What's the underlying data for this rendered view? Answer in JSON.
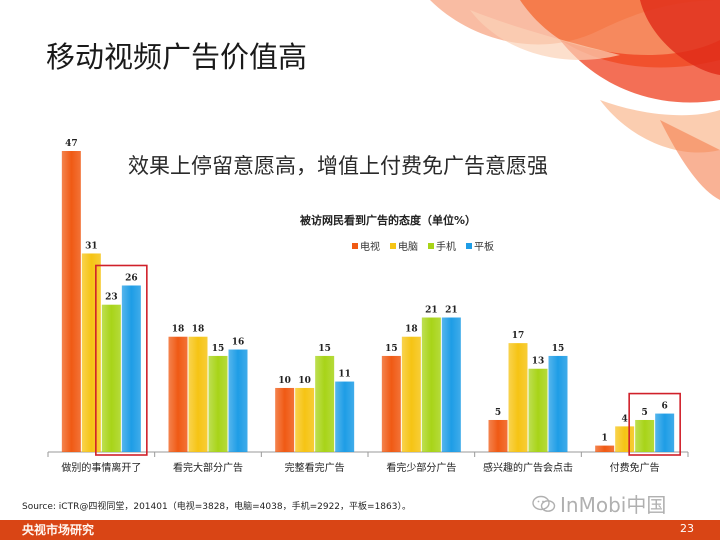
{
  "slide": {
    "title": "移动视频广告价值高",
    "subtitle": "效果上停留意愿高，增值上付费免广告意愿强",
    "source": "Source: iCTR@四视同堂，201401（电视=3828，电脑=4038，手机=2922，平板=1863）。",
    "watermark": "InMobi中国",
    "page_number": "23",
    "footer_brand": "央视市场研究"
  },
  "colors": {
    "accent": "#e8501e",
    "tv": "#f05a14",
    "pc": "#f6c414",
    "mobile": "#a8d418",
    "tablet": "#1e9de6",
    "highlight": "#d0202a"
  },
  "chart_data": {
    "type": "bar",
    "title": "被访网民看到广告的态度（单位%）",
    "categories": [
      "做别的事情离开了",
      "看完大部分广告",
      "完整看完广告",
      "看完少部分广告",
      "感兴趣的广告会点击",
      "付费免广告"
    ],
    "series": [
      {
        "name": "电视",
        "values": [
          47,
          18,
          10,
          15,
          5,
          1
        ]
      },
      {
        "name": "电脑",
        "values": [
          31,
          18,
          10,
          18,
          17,
          4
        ]
      },
      {
        "name": "手机",
        "values": [
          23,
          15,
          15,
          21,
          13,
          5
        ]
      },
      {
        "name": "平板",
        "values": [
          26,
          16,
          11,
          21,
          15,
          6
        ]
      }
    ],
    "highlighted": [
      {
        "category": "做别的事情离开了",
        "series": [
          "手机",
          "平板"
        ]
      },
      {
        "category": "付费免广告",
        "series": [
          "手机",
          "平板"
        ]
      }
    ],
    "ylim": [
      0,
      47
    ],
    "legend": "top-center",
    "grid": false
  }
}
